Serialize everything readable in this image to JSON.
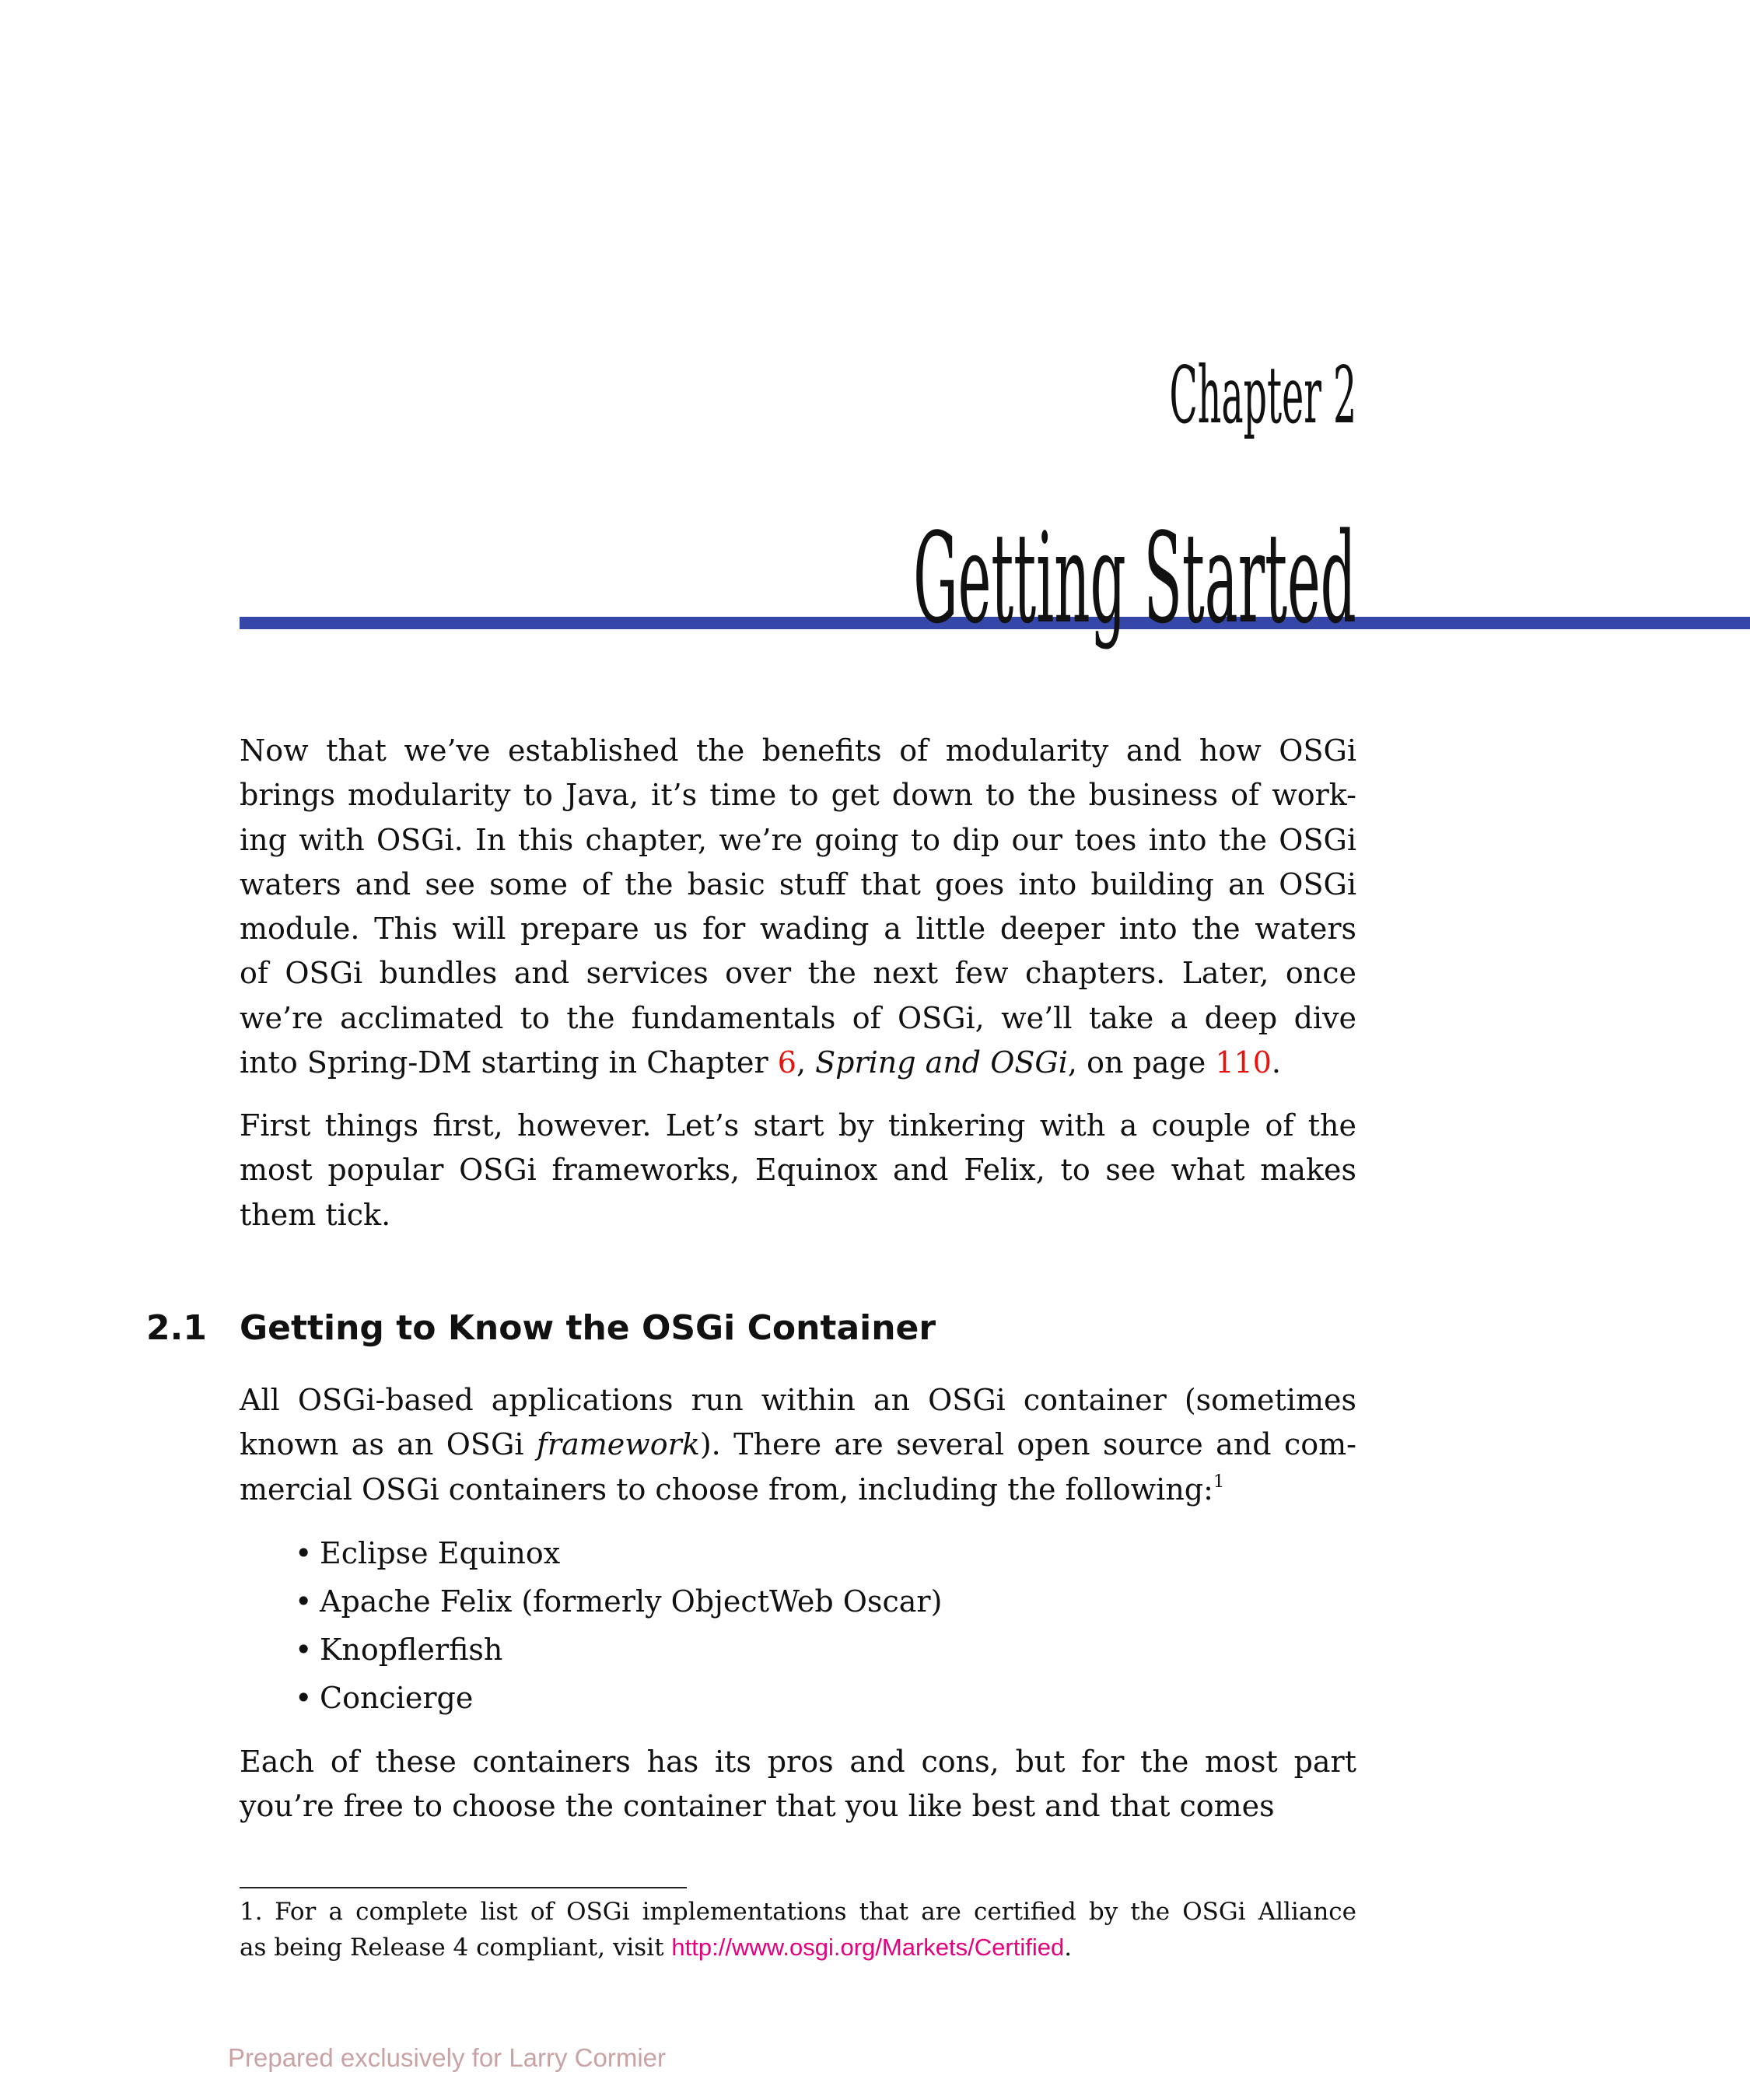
{
  "chapter": {
    "label": "Chapter 2",
    "title": "Getting Started",
    "rule_color": "#3548a9"
  },
  "paragraphs": [
    {
      "name": "intro-paragraph",
      "lines": [
        [
          {
            "t": "Now that we’ve established the benefits of modularity and how OSGi"
          }
        ],
        [
          {
            "t": "brings modularity to Java, it’s time to get down to the business of work-"
          }
        ],
        [
          {
            "t": "ing with OSGi. In this chapter, we’re going to dip our toes into the OSGi"
          }
        ],
        [
          {
            "t": "waters and see some of the basic stuff that goes into building an OSGi"
          }
        ],
        [
          {
            "t": "module. This will prepare us for wading a little deeper into the waters"
          }
        ],
        [
          {
            "t": "of OSGi bundles and services over the next few chapters. Later, once"
          }
        ],
        [
          {
            "t": "we’re acclimated to the fundamentals of OSGi, we’ll take a deep dive"
          }
        ],
        [
          {
            "t": "into Spring-DM starting in Chapter "
          },
          {
            "t": "6",
            "s": "red",
            "link": true
          },
          {
            "t": ", "
          },
          {
            "t": "Spring and OSGi",
            "s": "it"
          },
          {
            "t": ", on page "
          },
          {
            "t": "110",
            "s": "red",
            "link": true
          },
          {
            "t": "."
          }
        ]
      ]
    },
    {
      "name": "first-things-paragraph",
      "lines": [
        [
          {
            "t": "First things first, however. Let’s start by tinkering with a couple of the"
          }
        ],
        [
          {
            "t": "most popular OSGi frameworks, Equinox and Felix, to see what makes"
          }
        ],
        [
          {
            "t": "them tick."
          }
        ]
      ]
    },
    {
      "name": "containers-paragraph",
      "lines": [
        [
          {
            "t": "All OSGi-based applications run within an OSGi container (sometimes"
          }
        ],
        [
          {
            "t": "known as an OSGi "
          },
          {
            "t": "framework",
            "s": "it"
          },
          {
            "t": "). There are several open source and com-"
          }
        ],
        [
          {
            "t": "mercial OSGi containers to choose from, including the following:"
          },
          {
            "t": "1",
            "s": "sup",
            "link": true
          }
        ]
      ]
    },
    {
      "name": "pros-cons-paragraph",
      "lines": [
        [
          {
            "t": "Each of these containers has its pros and cons, but for the most part"
          }
        ],
        [
          {
            "t": "you’re free to choose the container that you like best and that comes"
          }
        ]
      ]
    }
  ],
  "section": {
    "number": "2.1",
    "title": "Getting to Know the OSGi Container"
  },
  "bullets": {
    "symbol": "•",
    "items": [
      "Eclipse Equinox",
      "Apache Felix (formerly ObjectWeb Oscar)",
      "Knopflerfish",
      "Concierge"
    ]
  },
  "footnote": {
    "lines": [
      [
        {
          "t": "1. For a complete list of OSGi implementations that are certified by the OSGi Alliance"
        }
      ],
      [
        {
          "t": "as being Release 4 compliant, visit "
        },
        {
          "t": "http://www.osgi.org/Markets/Certified",
          "s": "url",
          "link": true
        },
        {
          "t": "."
        }
      ]
    ]
  },
  "watermark": "Prepared exclusively for Larry Cormier",
  "colors": {
    "xref": "#e8130f",
    "url": "#e5007d",
    "watermark": "#c9a3a3"
  }
}
